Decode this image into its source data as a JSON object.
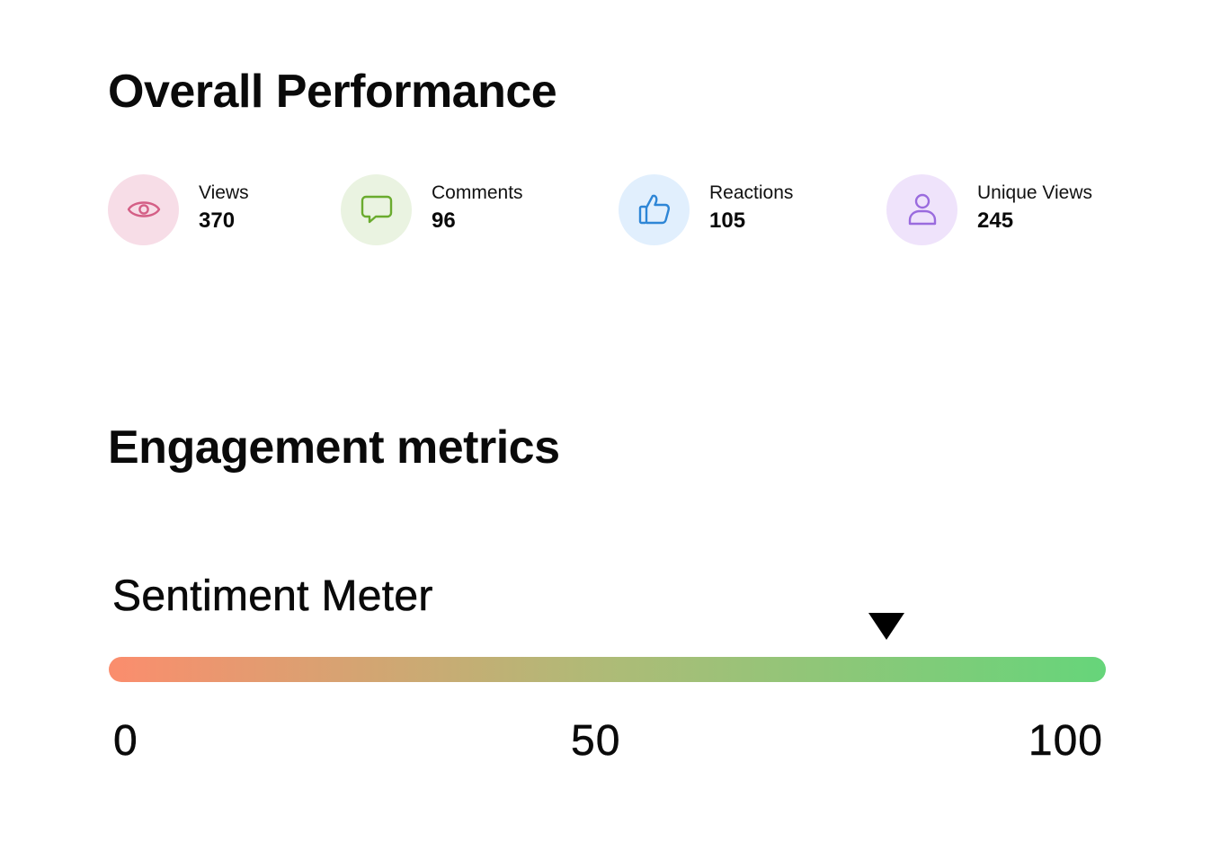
{
  "overall": {
    "title": "Overall Performance",
    "stats": [
      {
        "label": "Views",
        "value": "370",
        "icon": "eye-icon",
        "icon_color": "#d45f86",
        "bg_color": "#f7dde7"
      },
      {
        "label": "Comments",
        "value": "96",
        "icon": "speech-bubble-icon",
        "icon_color": "#6aab2e",
        "bg_color": "#eaf3e1"
      },
      {
        "label": "Reactions",
        "value": "105",
        "icon": "thumbs-up-icon",
        "icon_color": "#2e86d6",
        "bg_color": "#e1effd"
      },
      {
        "label": "Unique Views",
        "value": "245",
        "icon": "user-icon",
        "icon_color": "#9a6bde",
        "bg_color": "#efe3fb"
      }
    ]
  },
  "engagement": {
    "title": "Engagement metrics",
    "sentiment_meter": {
      "title": "Sentiment Meter",
      "min": 0,
      "max": 100,
      "value": 78,
      "tick_labels": [
        "0",
        "50",
        "100"
      ],
      "gradient_start_color": "#fb8d6d",
      "gradient_mid_color": "#aebb77",
      "gradient_end_color": "#66d57a",
      "marker_color": "#000000"
    }
  }
}
